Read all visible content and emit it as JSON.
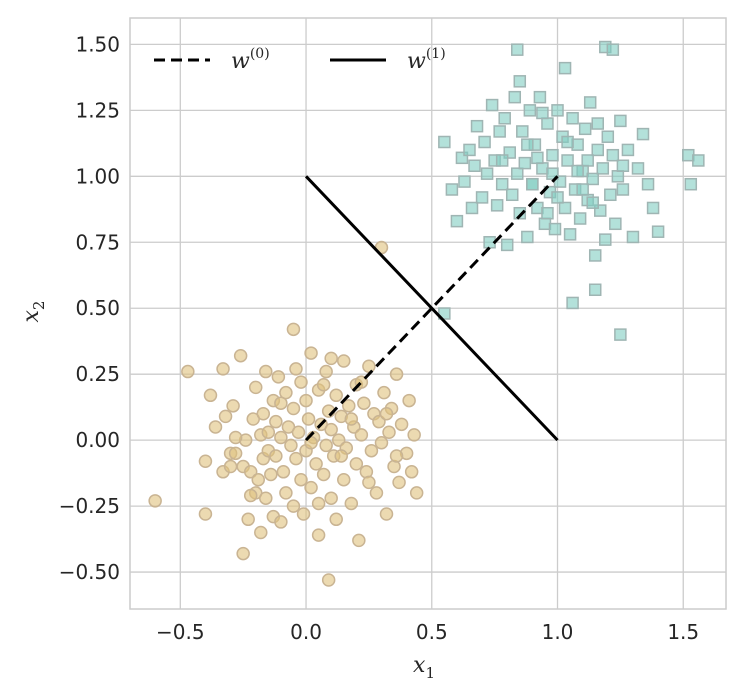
{
  "chart_data": {
    "type": "scatter",
    "xlim": [
      -0.7,
      1.67
    ],
    "ylim": [
      -0.64,
      1.6
    ],
    "xticks": [
      -0.5,
      0.0,
      0.5,
      1.0,
      1.5
    ],
    "yticks": [
      -0.5,
      -0.25,
      0.0,
      0.25,
      0.5,
      0.75,
      1.0,
      1.25,
      1.5
    ],
    "xtick_labels": [
      "−0.5",
      "0.0",
      "0.5",
      "1.0",
      "1.5"
    ],
    "ytick_labels": [
      "−0.50",
      "−0.25",
      "0.00",
      "0.25",
      "0.50",
      "0.75",
      "1.00",
      "1.25",
      "1.50"
    ],
    "xlabel": {
      "base": "x",
      "sub": "1"
    },
    "ylabel": {
      "base": "x",
      "sub": "2"
    },
    "grid": true,
    "legend_position": "top-left",
    "lines": [
      {
        "name": {
          "base": "w",
          "sup": "(0)"
        },
        "style": "dashed",
        "color": "#000000",
        "x": [
          0.0,
          1.0
        ],
        "y": [
          0.0,
          1.0
        ]
      },
      {
        "name": {
          "base": "w",
          "sup": "(1)"
        },
        "style": "solid",
        "color": "#000000",
        "x": [
          0.0,
          1.0
        ],
        "y": [
          1.0,
          0.0
        ]
      }
    ],
    "series": [
      {
        "marker": "circle",
        "color": "#dfc27d",
        "edge_color": "#c9b493",
        "points": [
          [
            -0.6,
            -0.23
          ],
          [
            -0.47,
            0.26
          ],
          [
            -0.4,
            -0.28
          ],
          [
            -0.4,
            -0.08
          ],
          [
            -0.38,
            0.17
          ],
          [
            -0.36,
            0.05
          ],
          [
            -0.33,
            0.27
          ],
          [
            -0.33,
            -0.12
          ],
          [
            -0.32,
            0.09
          ],
          [
            -0.3,
            -0.05
          ],
          [
            -0.3,
            -0.1
          ],
          [
            -0.29,
            0.13
          ],
          [
            -0.28,
            -0.05
          ],
          [
            -0.26,
            0.32
          ],
          [
            -0.25,
            -0.43
          ],
          [
            -0.25,
            -0.1
          ],
          [
            -0.24,
            0.0
          ],
          [
            -0.23,
            -0.3
          ],
          [
            -0.22,
            -0.12
          ],
          [
            -0.21,
            0.08
          ],
          [
            -0.2,
            -0.2
          ],
          [
            -0.2,
            0.2
          ],
          [
            -0.19,
            -0.15
          ],
          [
            -0.18,
            -0.35
          ],
          [
            -0.18,
            0.02
          ],
          [
            -0.17,
            0.1
          ],
          [
            -0.17,
            -0.07
          ],
          [
            -0.16,
            -0.22
          ],
          [
            -0.15,
            0.03
          ],
          [
            -0.15,
            -0.04
          ],
          [
            -0.14,
            -0.13
          ],
          [
            -0.13,
            0.15
          ],
          [
            -0.13,
            -0.29
          ],
          [
            -0.12,
            -0.06
          ],
          [
            -0.12,
            0.07
          ],
          [
            -0.11,
            0.24
          ],
          [
            -0.1,
            -0.31
          ],
          [
            -0.1,
            0.01
          ],
          [
            -0.09,
            -0.12
          ],
          [
            -0.08,
            0.18
          ],
          [
            -0.08,
            -0.2
          ],
          [
            -0.07,
            0.05
          ],
          [
            -0.06,
            -0.02
          ],
          [
            -0.05,
            -0.25
          ],
          [
            -0.05,
            0.12
          ],
          [
            -0.04,
            0.27
          ],
          [
            -0.04,
            -0.07
          ],
          [
            -0.03,
            0.03
          ],
          [
            -0.02,
            -0.15
          ],
          [
            -0.02,
            0.22
          ],
          [
            -0.01,
            -0.28
          ],
          [
            0.0,
            0.15
          ],
          [
            0.0,
            -0.04
          ],
          [
            0.01,
            0.08
          ],
          [
            0.02,
            -0.18
          ],
          [
            0.02,
            0.33
          ],
          [
            0.03,
            0.01
          ],
          [
            0.04,
            -0.09
          ],
          [
            0.05,
            0.19
          ],
          [
            0.05,
            -0.36
          ],
          [
            0.06,
            0.06
          ],
          [
            0.07,
            -0.13
          ],
          [
            0.08,
            0.26
          ],
          [
            0.08,
            -0.02
          ],
          [
            0.09,
            0.11
          ],
          [
            0.1,
            -0.22
          ],
          [
            0.1,
            0.04
          ],
          [
            0.11,
            -0.06
          ],
          [
            0.12,
            0.17
          ],
          [
            0.12,
            -0.3
          ],
          [
            0.13,
            0.0
          ],
          [
            0.14,
            0.09
          ],
          [
            0.15,
            -0.15
          ],
          [
            0.15,
            0.3
          ],
          [
            0.16,
            -0.03
          ],
          [
            0.17,
            0.13
          ],
          [
            0.18,
            -0.24
          ],
          [
            0.19,
            0.05
          ],
          [
            0.2,
            -0.09
          ],
          [
            0.2,
            0.21
          ],
          [
            0.21,
            -0.38
          ],
          [
            0.22,
            0.02
          ],
          [
            0.23,
            0.14
          ],
          [
            0.24,
            -0.12
          ],
          [
            0.25,
            0.28
          ],
          [
            0.26,
            -0.04
          ],
          [
            0.27,
            0.1
          ],
          [
            0.28,
            -0.2
          ],
          [
            0.29,
            0.07
          ],
          [
            0.3,
            -0.01
          ],
          [
            0.31,
            0.18
          ],
          [
            0.32,
            -0.28
          ],
          [
            0.33,
            0.03
          ],
          [
            0.34,
            0.12
          ],
          [
            0.35,
            -0.1
          ],
          [
            0.36,
            0.25
          ],
          [
            0.37,
            -0.16
          ],
          [
            0.38,
            0.06
          ],
          [
            0.4,
            -0.05
          ],
          [
            0.41,
            0.15
          ],
          [
            0.42,
            -0.12
          ],
          [
            0.43,
            0.02
          ],
          [
            0.44,
            -0.2
          ],
          [
            0.3,
            0.73
          ],
          [
            0.09,
            -0.53
          ],
          [
            -0.05,
            0.42
          ],
          [
            0.02,
            -0.01
          ],
          [
            0.1,
            0.31
          ],
          [
            0.22,
            0.22
          ],
          [
            -0.22,
            -0.21
          ],
          [
            0.05,
            -0.24
          ],
          [
            -0.1,
            0.14
          ],
          [
            0.14,
            -0.06
          ],
          [
            0.18,
            0.08
          ],
          [
            0.25,
            -0.16
          ],
          [
            -0.28,
            0.01
          ],
          [
            0.32,
            0.1
          ],
          [
            -0.16,
            0.26
          ],
          [
            0.07,
            0.21
          ],
          [
            0.36,
            -0.06
          ]
        ]
      },
      {
        "marker": "square",
        "color": "#80cdc1",
        "edge_color": "#9fb5b3",
        "points": [
          [
            0.55,
            0.48
          ],
          [
            0.55,
            1.13
          ],
          [
            0.58,
            0.95
          ],
          [
            0.6,
            0.83
          ],
          [
            0.62,
            1.07
          ],
          [
            0.63,
            0.98
          ],
          [
            0.65,
            1.1
          ],
          [
            0.66,
            0.88
          ],
          [
            0.67,
            1.04
          ],
          [
            0.68,
            1.19
          ],
          [
            0.7,
            0.92
          ],
          [
            0.71,
            1.13
          ],
          [
            0.72,
            1.01
          ],
          [
            0.73,
            0.75
          ],
          [
            0.74,
            1.27
          ],
          [
            0.75,
            1.06
          ],
          [
            0.76,
            0.89
          ],
          [
            0.77,
            1.17
          ],
          [
            0.78,
            0.97
          ],
          [
            0.79,
            1.22
          ],
          [
            0.8,
            0.74
          ],
          [
            0.81,
            1.09
          ],
          [
            0.82,
            0.93
          ],
          [
            0.83,
            1.3
          ],
          [
            0.84,
            1.01
          ],
          [
            0.85,
            0.86
          ],
          [
            0.86,
            1.17
          ],
          [
            0.87,
            1.05
          ],
          [
            0.88,
            0.77
          ],
          [
            0.89,
            1.25
          ],
          [
            0.9,
            0.97
          ],
          [
            0.91,
            1.12
          ],
          [
            0.92,
            0.88
          ],
          [
            0.93,
            1.3
          ],
          [
            0.94,
            1.03
          ],
          [
            0.95,
            0.82
          ],
          [
            0.96,
            1.2
          ],
          [
            0.97,
            0.94
          ],
          [
            0.98,
            1.08
          ],
          [
            0.99,
            0.8
          ],
          [
            1.0,
            1.25
          ],
          [
            1.01,
            0.98
          ],
          [
            1.02,
            1.15
          ],
          [
            1.03,
            0.88
          ],
          [
            1.04,
            1.06
          ],
          [
            1.05,
            0.78
          ],
          [
            1.06,
            1.22
          ],
          [
            1.07,
            0.95
          ],
          [
            1.08,
            1.12
          ],
          [
            1.09,
            0.84
          ],
          [
            1.1,
            1.02
          ],
          [
            1.11,
            1.18
          ],
          [
            1.12,
            0.91
          ],
          [
            1.13,
            1.28
          ],
          [
            1.14,
            0.99
          ],
          [
            1.15,
            0.7
          ],
          [
            1.16,
            1.1
          ],
          [
            1.17,
            0.87
          ],
          [
            1.18,
            1.03
          ],
          [
            1.19,
            0.76
          ],
          [
            1.2,
            1.15
          ],
          [
            1.21,
            0.93
          ],
          [
            1.22,
            1.08
          ],
          [
            1.23,
            0.82
          ],
          [
            1.24,
            1.0
          ],
          [
            1.25,
            1.21
          ],
          [
            1.26,
            0.95
          ],
          [
            1.28,
            1.1
          ],
          [
            1.3,
            0.77
          ],
          [
            1.32,
            1.03
          ],
          [
            1.34,
            1.16
          ],
          [
            1.36,
            0.97
          ],
          [
            1.38,
            0.88
          ],
          [
            1.4,
            0.79
          ],
          [
            1.52,
            1.08
          ],
          [
            1.53,
            0.97
          ],
          [
            1.56,
            1.06
          ],
          [
            0.84,
            1.48
          ],
          [
            1.19,
            1.49
          ],
          [
            1.22,
            1.48
          ],
          [
            1.06,
            0.52
          ],
          [
            1.15,
            0.57
          ],
          [
            1.25,
            0.4
          ],
          [
            0.85,
            1.36
          ],
          [
            1.03,
            1.41
          ],
          [
            0.92,
            1.07
          ],
          [
            1.0,
            0.92
          ],
          [
            1.12,
            1.06
          ],
          [
            0.96,
            0.86
          ],
          [
            1.08,
            1.02
          ],
          [
            0.88,
            1.12
          ],
          [
            1.14,
            0.9
          ],
          [
            0.94,
            1.24
          ],
          [
            1.04,
            1.13
          ],
          [
            0.78,
            1.06
          ],
          [
            1.26,
            1.04
          ],
          [
            0.98,
            1.01
          ],
          [
            1.1,
            0.95
          ],
          [
            0.9,
            0.97
          ],
          [
            1.16,
            1.2
          ]
        ]
      }
    ]
  }
}
